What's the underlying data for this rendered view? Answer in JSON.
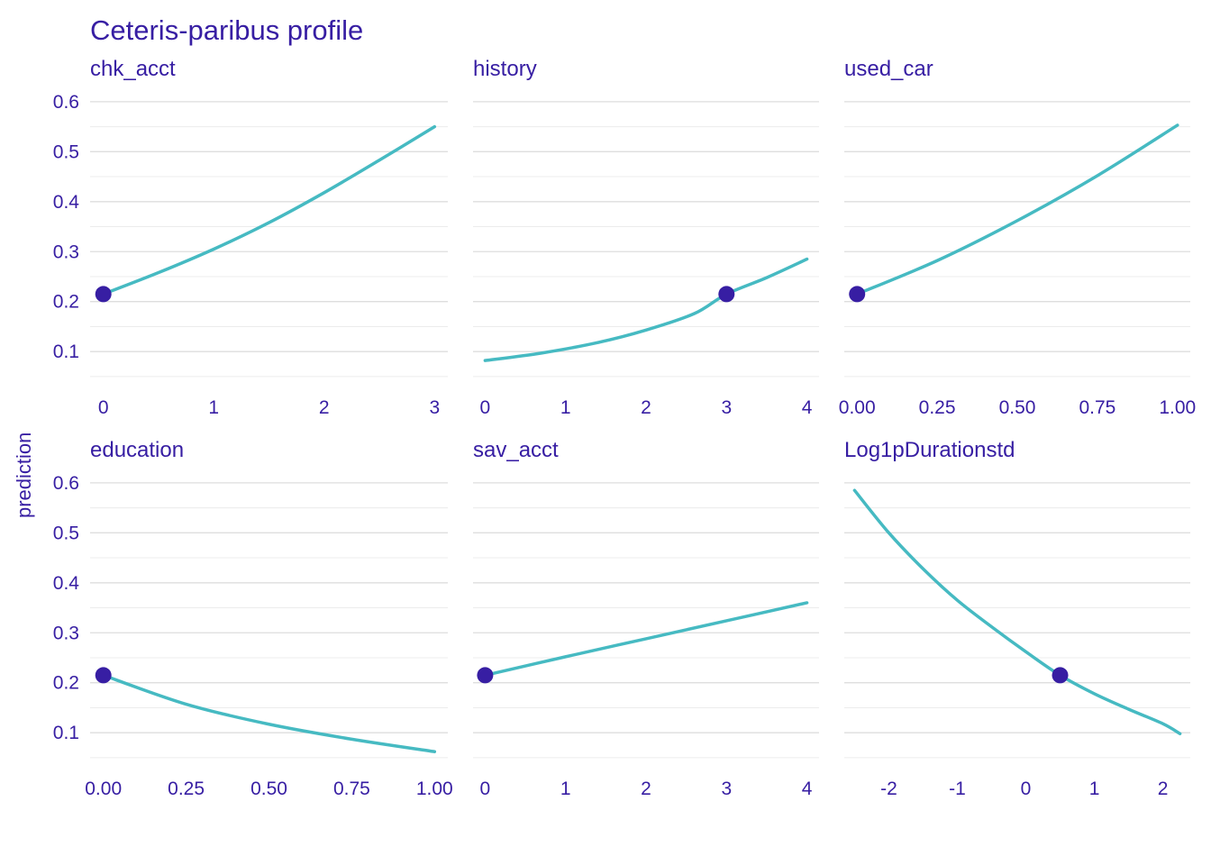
{
  "chart_data": {
    "type": "line",
    "title": "Ceteris-paribus profile",
    "ylabel": "prediction",
    "ylim": [
      0.03,
      0.625
    ],
    "yticks": [
      0.1,
      0.2,
      0.3,
      0.4,
      0.5,
      0.6
    ],
    "ytick_labels": [
      "0.1",
      "0.2",
      "0.3",
      "0.4",
      "0.5",
      "0.6"
    ],
    "grid_step": 0.05,
    "legend": "none",
    "grid": "horizontal-only",
    "colors": {
      "line": "#46bac2",
      "dot": "#371ea3",
      "text": "#371ea3",
      "grid_major": "#dedede",
      "grid_minor": "#ececec",
      "background": "#ffffff"
    },
    "panels": [
      {
        "title": "chk_acct",
        "xlim": [
          -0.12,
          3.12
        ],
        "xticks": [
          0,
          1,
          2,
          3
        ],
        "xtick_labels": [
          "0",
          "1",
          "2",
          "3"
        ],
        "points": [
          [
            0,
            0.215
          ],
          [
            0.5,
            0.258
          ],
          [
            1,
            0.305
          ],
          [
            1.5,
            0.358
          ],
          [
            2,
            0.418
          ],
          [
            2.5,
            0.483
          ],
          [
            3,
            0.55
          ]
        ],
        "dot": [
          0,
          0.215
        ]
      },
      {
        "title": "history",
        "xlim": [
          -0.15,
          4.15
        ],
        "xticks": [
          0,
          1,
          2,
          3,
          4
        ],
        "xtick_labels": [
          "0",
          "1",
          "2",
          "3",
          "4"
        ],
        "points": [
          [
            0,
            0.082
          ],
          [
            0.7,
            0.097
          ],
          [
            1.4,
            0.118
          ],
          [
            2,
            0.143
          ],
          [
            2.6,
            0.176
          ],
          [
            3,
            0.215
          ],
          [
            3.5,
            0.248
          ],
          [
            4,
            0.285
          ]
        ],
        "dot": [
          3,
          0.215
        ]
      },
      {
        "title": "used_car",
        "xlim": [
          -0.04,
          1.04
        ],
        "xticks": [
          0,
          0.25,
          0.5,
          0.75,
          1
        ],
        "xtick_labels": [
          "0.00",
          "0.25",
          "0.50",
          "0.75",
          "1.00"
        ],
        "points": [
          [
            0,
            0.215
          ],
          [
            0.25,
            0.282
          ],
          [
            0.5,
            0.362
          ],
          [
            0.75,
            0.452
          ],
          [
            1,
            0.553
          ]
        ],
        "dot": [
          0,
          0.215
        ]
      },
      {
        "title": "education",
        "xlim": [
          -0.04,
          1.04
        ],
        "xticks": [
          0,
          0.25,
          0.5,
          0.75,
          1
        ],
        "xtick_labels": [
          "0.00",
          "0.25",
          "0.50",
          "0.75",
          "1.00"
        ],
        "points": [
          [
            0,
            0.215
          ],
          [
            0.25,
            0.157
          ],
          [
            0.5,
            0.117
          ],
          [
            0.75,
            0.087
          ],
          [
            1,
            0.062
          ]
        ],
        "dot": [
          0,
          0.215
        ]
      },
      {
        "title": "sav_acct",
        "xlim": [
          -0.15,
          4.15
        ],
        "xticks": [
          0,
          1,
          2,
          3,
          4
        ],
        "xtick_labels": [
          "0",
          "1",
          "2",
          "3",
          "4"
        ],
        "points": [
          [
            0,
            0.215
          ],
          [
            1,
            0.252
          ],
          [
            2,
            0.288
          ],
          [
            3,
            0.324
          ],
          [
            4,
            0.36
          ]
        ],
        "dot": [
          0,
          0.215
        ]
      },
      {
        "title": "Log1pDurationstd",
        "xlim": [
          -2.65,
          2.4
        ],
        "xticks": [
          -2,
          -1,
          0,
          1,
          2
        ],
        "xtick_labels": [
          "-2",
          "-1",
          "0",
          "1",
          "2"
        ],
        "points": [
          [
            -2.5,
            0.585
          ],
          [
            -2,
            0.5
          ],
          [
            -1.5,
            0.428
          ],
          [
            -1,
            0.365
          ],
          [
            -0.5,
            0.312
          ],
          [
            0,
            0.262
          ],
          [
            0.5,
            0.215
          ],
          [
            1,
            0.178
          ],
          [
            1.5,
            0.147
          ],
          [
            2,
            0.118
          ],
          [
            2.25,
            0.098
          ]
        ],
        "dot": [
          0.5,
          0.215
        ]
      }
    ]
  }
}
